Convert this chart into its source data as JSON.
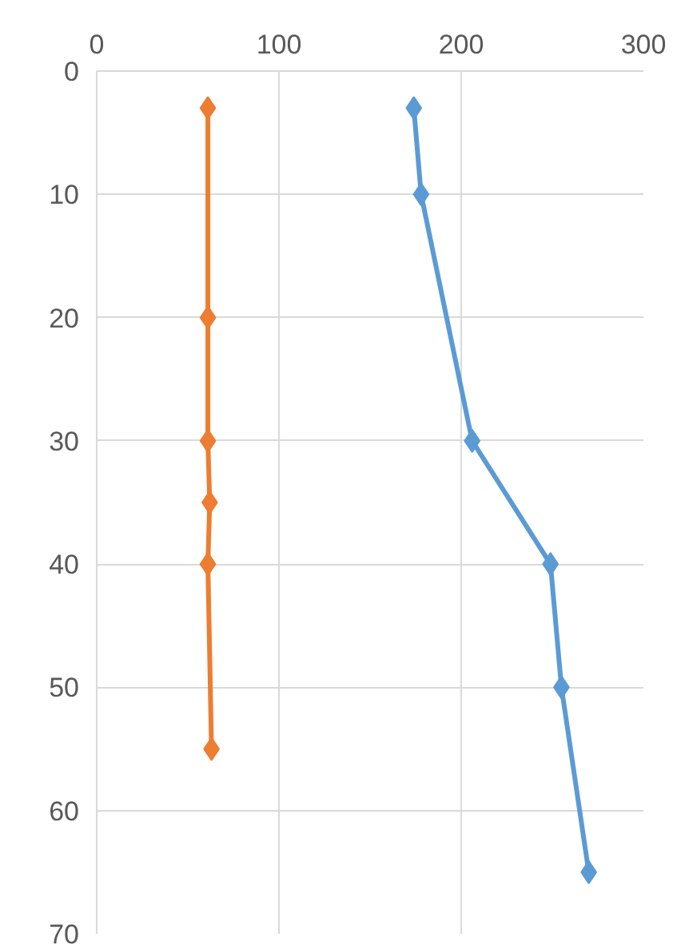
{
  "chart_data": {
    "type": "line",
    "xlim": [
      0,
      300
    ],
    "xticks": [
      0,
      100,
      200,
      300
    ],
    "ylim": [
      70,
      0
    ],
    "yticks": [
      0,
      10,
      20,
      30,
      40,
      50,
      60,
      70
    ],
    "grid": true,
    "marker": "diamond",
    "line_style": "solid",
    "series": [
      {
        "color": "#ed7d31",
        "x": [
          61,
          61,
          61,
          62,
          61,
          63
        ],
        "values": [
          3,
          20,
          30,
          35,
          40,
          55
        ]
      },
      {
        "color": "#5b9bd5",
        "x": [
          174,
          178,
          206,
          249,
          255,
          270
        ],
        "values": [
          3,
          10,
          30,
          40,
          50,
          65
        ]
      }
    ]
  }
}
